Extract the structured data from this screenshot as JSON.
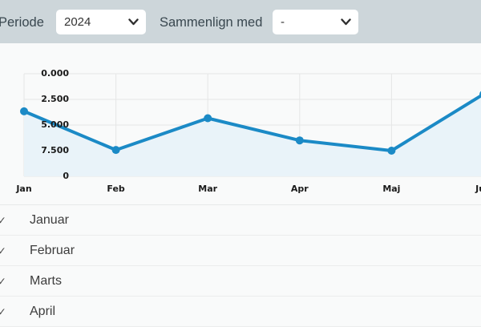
{
  "topbar": {
    "periode_label": "Periode",
    "periode_value": "2024",
    "compare_label": "Sammenlign med",
    "compare_value": "-"
  },
  "chart_data": {
    "type": "area",
    "title": "",
    "xlabel": "",
    "ylabel": "",
    "categories": [
      "Jan",
      "Feb",
      "Mar",
      "Apr",
      "Maj",
      "Jun"
    ],
    "values": [
      19000,
      7700,
      17000,
      10500,
      7500,
      24000
    ],
    "ylim": [
      0,
      30000
    ],
    "y_ticks": [
      0,
      7500,
      15000,
      22500,
      30000
    ],
    "y_tick_labels_visible": [
      "0.000",
      "2.500",
      "5.000",
      "7.500",
      "0"
    ],
    "x_tick_labels_visible": [
      "Jan",
      "Feb",
      "Mar",
      "Apr",
      "Maj",
      "J"
    ],
    "grid": true,
    "legend": false,
    "line_color": "#1b8ac6",
    "fill_color": "#e9f3f9",
    "marker_color": "#1b8ac6",
    "gridline_color": "#e5e6e6"
  },
  "month_list": {
    "check_icon": "✓",
    "items": [
      {
        "label": "Januar",
        "checked": true
      },
      {
        "label": "Februar",
        "checked": true
      },
      {
        "label": "Marts",
        "checked": true
      },
      {
        "label": "April",
        "checked": true
      }
    ]
  }
}
